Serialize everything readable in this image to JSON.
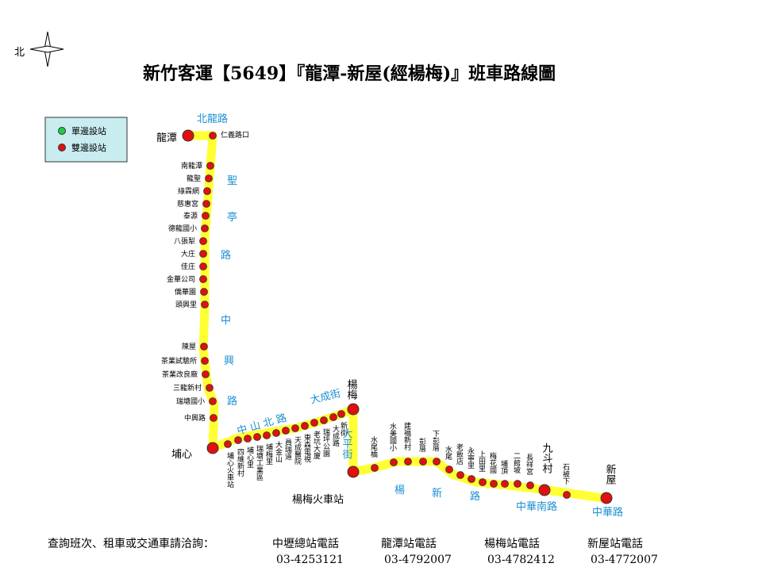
{
  "title": "新竹客運【5649】『龍潭-新屋(經楊梅)』班車路線圖",
  "compass": {
    "north_label": "北"
  },
  "legend": {
    "single_side": "單邊設站",
    "double_side": "雙邊設站",
    "single_color": "#22cc44",
    "double_color": "#e01010"
  },
  "colors": {
    "route": "#ffff33",
    "stop": "#e01010",
    "road_text": "#1e8fd0"
  },
  "terminals": {
    "longtan": "龍潭",
    "pushin": "埔心",
    "yangmei": "楊梅",
    "yangmei_station": "楊梅火車站",
    "jiudoucun": "九斗村",
    "xinwu": "新屋"
  },
  "roads": {
    "beilong": "北龍路",
    "sheng": "聖",
    "ting": "亭",
    "lu1": "路",
    "zhong": "中",
    "xing": "興",
    "lu2": "路",
    "zhongshanbei": "中 山 北 路",
    "dacheng": "大成街",
    "daping": "大平街",
    "yang": "楊",
    "xin": "新",
    "lu3": "路",
    "zhonghuanan": "中華南路",
    "zhonghua": "中華路"
  },
  "stops_left": [
    "仁義路口",
    "南龍潭",
    "龍聖",
    "綠霖網",
    "慈惠宮",
    "泰源",
    "德龍國小",
    "八張犁",
    "大庄",
    "佳庄",
    "金華公司",
    "僑華園",
    "頭興里",
    "陳屋",
    "茶業試驗所",
    "茶業改良廠",
    "三龍新村",
    "瑞塘國小",
    "中興路"
  ],
  "stops_diag": [
    "埔心火車站",
    "四維新村",
    "埔心里",
    "瑞塘工業區",
    "埔梅里",
    "大金山",
    "員瑞道",
    "天成醫院",
    "東森電視",
    "老坑大廈",
    "瑞坪公園",
    "大成路",
    "新街"
  ],
  "stops_right": [
    "水尾橋",
    "水美國小",
    "建福新村",
    "彭厝",
    "下彭厝",
    "水尾",
    "老飯店",
    "永寧里",
    "上田里",
    "梅花國",
    "埔頂",
    "二館坡",
    "長祥宮",
    "石被下"
  ],
  "footer": {
    "inquiry": "查詢班次、租車或交通車請洽詢：",
    "hq_label": "中壢總站電話",
    "hq_phone": "03-4253121",
    "longtan_label": "龍潭站電話",
    "longtan_phone": "03-4792007",
    "yangmei_label": "楊梅站電話",
    "yangmei_phone": "03-4782412",
    "xinwu_label": "新屋站電話",
    "xinwu_phone": "03-4772007"
  }
}
